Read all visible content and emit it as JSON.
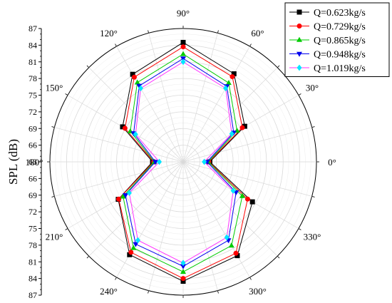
{
  "chart_data": {
    "type": "polar-line",
    "radial_axis": {
      "label": "SPL (dB)",
      "min": 63,
      "max": 87,
      "ticks": [
        63,
        66,
        69,
        72,
        75,
        78,
        81,
        84,
        87
      ],
      "upper_tick_labels": [
        "87",
        "84",
        "81",
        "78",
        "75",
        "72",
        "69",
        "66",
        "63"
      ],
      "lower_tick_labels": [
        "66",
        "69",
        "72",
        "75",
        "78",
        "81",
        "84",
        "87"
      ]
    },
    "angular_axis": {
      "angles": [
        0,
        30,
        60,
        90,
        120,
        150,
        180,
        210,
        240,
        270,
        300,
        330
      ],
      "labels": [
        "0°",
        "30°",
        "60°",
        "90°",
        "120°",
        "150°",
        "180°",
        "210°",
        "240°",
        "270°",
        "300°",
        "330°"
      ]
    },
    "grid": true,
    "legend": "top-right",
    "series": [
      {
        "name": "Q=0.623kg/s",
        "color": "#000000",
        "marker": "square",
        "points": [
          {
            "angle": 0,
            "value": 67.8
          },
          {
            "angle": 30,
            "value": 75.8
          },
          {
            "angle": 60,
            "value": 81.3
          },
          {
            "angle": 90,
            "value": 84.5
          },
          {
            "angle": 120,
            "value": 81.2
          },
          {
            "angle": 150,
            "value": 75.6
          },
          {
            "angle": 180,
            "value": 68.5
          },
          {
            "angle": 210,
            "value": 76.5
          },
          {
            "angle": 240,
            "value": 82.3
          },
          {
            "angle": 270,
            "value": 84.5
          },
          {
            "angle": 300,
            "value": 82.5
          },
          {
            "angle": 330,
            "value": 77.4
          }
        ]
      },
      {
        "name": "Q=0.729kg/s",
        "color": "#ff0000",
        "marker": "circle",
        "points": [
          {
            "angle": 0,
            "value": 67.6
          },
          {
            "angle": 30,
            "value": 75.3
          },
          {
            "angle": 60,
            "value": 80.7
          },
          {
            "angle": 90,
            "value": 83.7
          },
          {
            "angle": 120,
            "value": 80.6
          },
          {
            "angle": 150,
            "value": 75.1
          },
          {
            "angle": 180,
            "value": 68.3
          },
          {
            "angle": 210,
            "value": 76.4
          },
          {
            "angle": 240,
            "value": 81.8
          },
          {
            "angle": 270,
            "value": 84.0
          },
          {
            "angle": 300,
            "value": 82.0
          },
          {
            "angle": 330,
            "value": 76.4
          }
        ]
      },
      {
        "name": "Q=0.865kg/s",
        "color": "#00cc00",
        "marker": "triangle-up",
        "points": [
          {
            "angle": 0,
            "value": 67.5
          },
          {
            "angle": 30,
            "value": 74.2
          },
          {
            "angle": 60,
            "value": 79.4
          },
          {
            "angle": 90,
            "value": 82.4
          },
          {
            "angle": 120,
            "value": 79.5
          },
          {
            "angle": 150,
            "value": 74.0
          },
          {
            "angle": 180,
            "value": 68.2
          },
          {
            "angle": 210,
            "value": 75.5
          },
          {
            "angle": 240,
            "value": 80.9
          },
          {
            "angle": 270,
            "value": 82.8
          },
          {
            "angle": 300,
            "value": 80.4
          },
          {
            "angle": 330,
            "value": 75.3
          }
        ]
      },
      {
        "name": "Q=0.948kg/s",
        "color": "#0000ee",
        "marker": "triangle-down",
        "points": [
          {
            "angle": 0,
            "value": 67.3
          },
          {
            "angle": 30,
            "value": 73.5
          },
          {
            "angle": 60,
            "value": 78.7
          },
          {
            "angle": 90,
            "value": 81.6
          },
          {
            "angle": 120,
            "value": 78.8
          },
          {
            "angle": 150,
            "value": 73.3
          },
          {
            "angle": 180,
            "value": 68.0
          },
          {
            "angle": 210,
            "value": 75.0
          },
          {
            "angle": 240,
            "value": 80.1
          },
          {
            "angle": 270,
            "value": 81.8
          },
          {
            "angle": 300,
            "value": 79.3
          },
          {
            "angle": 330,
            "value": 74.0
          }
        ]
      },
      {
        "name": "Q=1.019kg/s",
        "color": "#ff33ff",
        "marker": "diamond",
        "points": [
          {
            "angle": 0,
            "value": 66.8
          },
          {
            "angle": 30,
            "value": 73.1
          },
          {
            "angle": 60,
            "value": 78.3
          },
          {
            "angle": 90,
            "value": 81.0
          },
          {
            "angle": 120,
            "value": 78.3
          },
          {
            "angle": 150,
            "value": 72.9
          },
          {
            "angle": 180,
            "value": 67.3
          },
          {
            "angle": 210,
            "value": 74.2
          },
          {
            "angle": 240,
            "value": 79.3
          },
          {
            "angle": 270,
            "value": 81.2
          },
          {
            "angle": 300,
            "value": 78.7
          },
          {
            "angle": 330,
            "value": 73.4
          }
        ]
      }
    ],
    "series_colors": {
      "grid": "#d9d9d9",
      "axis": "#000000"
    },
    "marker_colors_accent": {
      "cyan": "#00e5ff"
    }
  }
}
